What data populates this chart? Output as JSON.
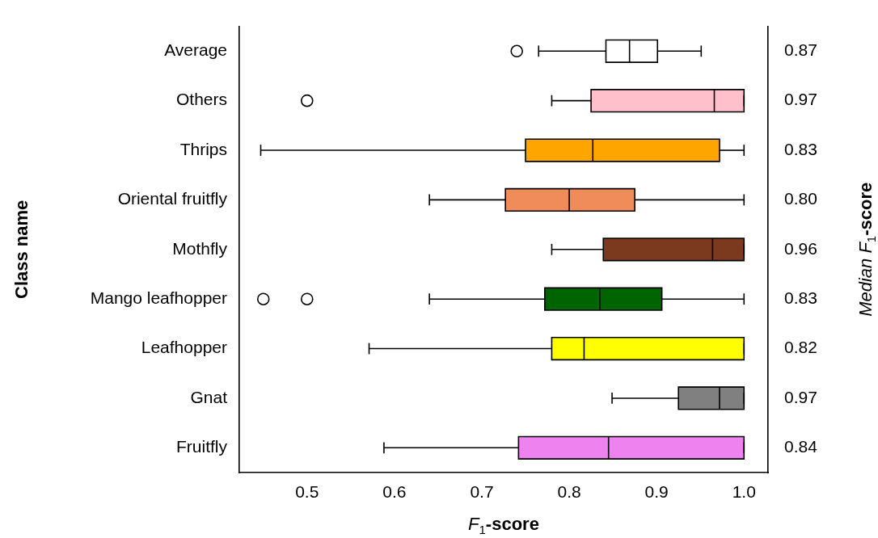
{
  "chart_data": {
    "type": "box",
    "orientation": "horizontal",
    "xlabel": "F$_{1}$-score",
    "ylabel": "Class name",
    "y2label": "Median F$_{1}$-score",
    "categories": [
      "Average",
      "Others",
      "Thrips",
      "Oriental fruitfly",
      "Mothfly",
      "Mango leafhopper",
      "Leafhopper",
      "Gnat",
      "Fruitfly"
    ],
    "y2_categories": [
      "0.87",
      "0.97",
      "0.83",
      "0.80",
      "0.96",
      "0.83",
      "0.82",
      "0.97",
      "0.84"
    ],
    "colors": [
      "#ffffff",
      "#ffc0cb",
      "#ffa500",
      "#f08c5a",
      "#7b3a1e",
      "#006400",
      "#ffff00",
      "#808080",
      "#ee82ee"
    ],
    "boxes": [
      {
        "low": 0.765,
        "q1": 0.842,
        "median": 0.869,
        "q3": 0.901,
        "high": 0.951,
        "outliers": [
          0.74
        ]
      },
      {
        "low": 0.78,
        "q1": 0.825,
        "median": 0.966,
        "q3": 1.0,
        "high": 1.0,
        "outliers": [
          0.5
        ]
      },
      {
        "low": 0.447,
        "q1": 0.75,
        "median": 0.827,
        "q3": 0.972,
        "high": 1.0
      },
      {
        "low": 0.64,
        "q1": 0.727,
        "median": 0.8,
        "q3": 0.875,
        "high": 1.0
      },
      {
        "low": 0.78,
        "q1": 0.839,
        "median": 0.964,
        "q3": 1.0,
        "high": 1.0
      },
      {
        "low": 0.64,
        "q1": 0.772,
        "median": 0.835,
        "q3": 0.906,
        "high": 1.0,
        "outliers": [
          0.45,
          0.5
        ]
      },
      {
        "low": 0.571,
        "q1": 0.78,
        "median": 0.817,
        "q3": 1.0,
        "high": 1.0
      },
      {
        "low": 0.849,
        "q1": 0.925,
        "median": 0.972,
        "q3": 1.0,
        "high": 1.0
      },
      {
        "low": 0.588,
        "q1": 0.742,
        "median": 0.845,
        "q3": 1.0,
        "high": 1.0
      }
    ],
    "xlim": [
      0.4225,
      1.0275
    ],
    "xticks": [
      {
        "value": 0.5,
        "label": "0.5"
      },
      {
        "value": 0.6,
        "label": "0.6"
      },
      {
        "value": 0.7,
        "label": "0.7"
      },
      {
        "value": 0.8,
        "label": "0.8"
      },
      {
        "value": 0.9,
        "label": "0.9"
      },
      {
        "value": 1.0,
        "label": "1.0"
      }
    ],
    "grid": false,
    "legend": false
  }
}
